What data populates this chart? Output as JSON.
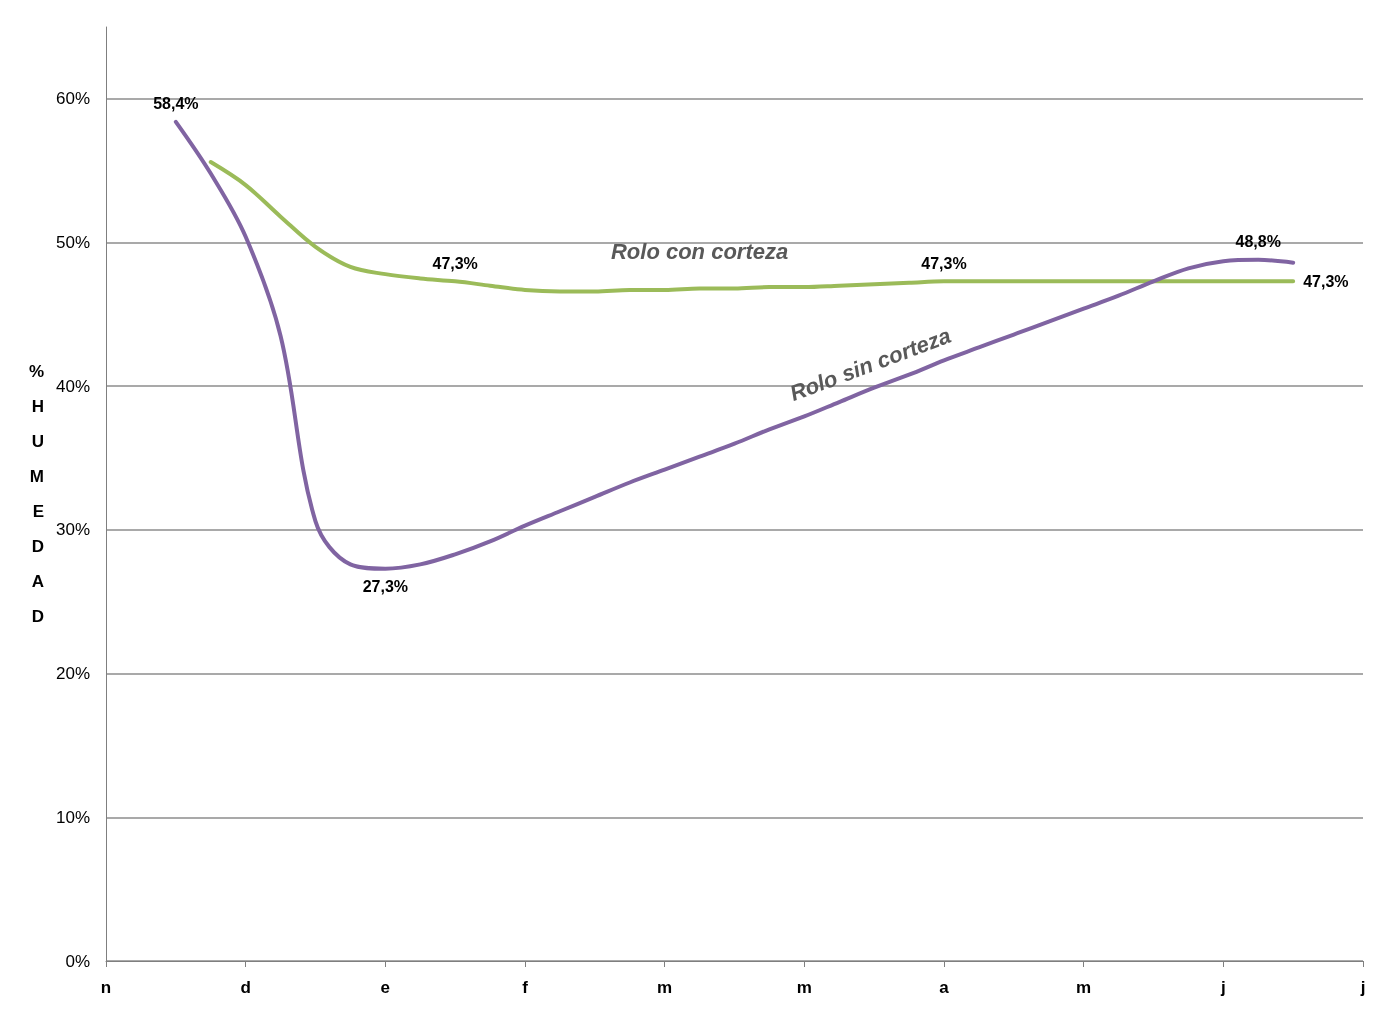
{
  "chart_data": {
    "type": "line",
    "ylabel": "% HUMEDAD",
    "categories": [
      "n",
      null,
      null,
      null,
      "d",
      null,
      null,
      null,
      "e",
      null,
      null,
      null,
      "f",
      null,
      null,
      null,
      "m",
      null,
      null,
      null,
      "m",
      null,
      null,
      null,
      "a",
      null,
      null,
      null,
      "m",
      null,
      null,
      null,
      "j",
      null,
      null,
      null,
      "j"
    ],
    "ylim": [
      0,
      65
    ],
    "yticks": [
      {
        "value": 0,
        "label": "0%"
      },
      {
        "value": 10,
        "label": "10%"
      },
      {
        "value": 20,
        "label": "20%"
      },
      {
        "value": 30,
        "label": "30%"
      },
      {
        "value": 40,
        "label": "40%"
      },
      {
        "value": 50,
        "label": "50%"
      },
      {
        "value": 60,
        "label": "60%"
      }
    ],
    "grid": "y",
    "legend": false,
    "marker": "none",
    "series": [
      {
        "name": "Rolo con corteza",
        "color": "#9bbb59",
        "values": [
          null,
          null,
          null,
          55.6,
          54.0,
          51.8,
          49.7,
          48.3,
          47.8,
          47.5,
          47.3,
          47.0,
          46.7,
          46.6,
          46.6,
          46.7,
          46.7,
          46.8,
          46.8,
          46.9,
          46.9,
          47.0,
          47.1,
          47.2,
          47.3,
          47.3,
          47.3,
          47.3,
          47.3,
          47.3,
          47.3,
          47.3,
          47.3,
          47.3,
          47.3,
          null,
          null
        ],
        "value_labels": [
          null,
          null,
          null,
          null,
          null,
          null,
          null,
          null,
          null,
          null,
          "47,3%",
          null,
          null,
          null,
          null,
          null,
          null,
          null,
          null,
          null,
          null,
          null,
          null,
          null,
          "47,3%",
          null,
          null,
          null,
          null,
          null,
          null,
          null,
          null,
          null,
          "47,3%",
          null,
          null
        ]
      },
      {
        "name": "Rolo sin corteza",
        "color": "#8064a2",
        "values": [
          null,
          null,
          58.4,
          54.8,
          50.4,
          43.5,
          30.6,
          27.6,
          27.3,
          27.6,
          28.3,
          29.2,
          30.3,
          31.3,
          32.3,
          33.3,
          34.2,
          35.1,
          36.0,
          37.0,
          37.9,
          38.9,
          39.9,
          40.8,
          41.8,
          42.7,
          43.6,
          44.5,
          45.4,
          46.3,
          47.3,
          48.2,
          48.7,
          48.8,
          48.6,
          null,
          null
        ],
        "value_labels": [
          null,
          null,
          "58,4%",
          null,
          null,
          null,
          null,
          null,
          "27,3%",
          null,
          null,
          null,
          null,
          null,
          null,
          null,
          null,
          null,
          null,
          null,
          null,
          null,
          null,
          null,
          null,
          null,
          null,
          null,
          null,
          null,
          null,
          null,
          null,
          "48,8%",
          null,
          null,
          null
        ]
      }
    ]
  }
}
